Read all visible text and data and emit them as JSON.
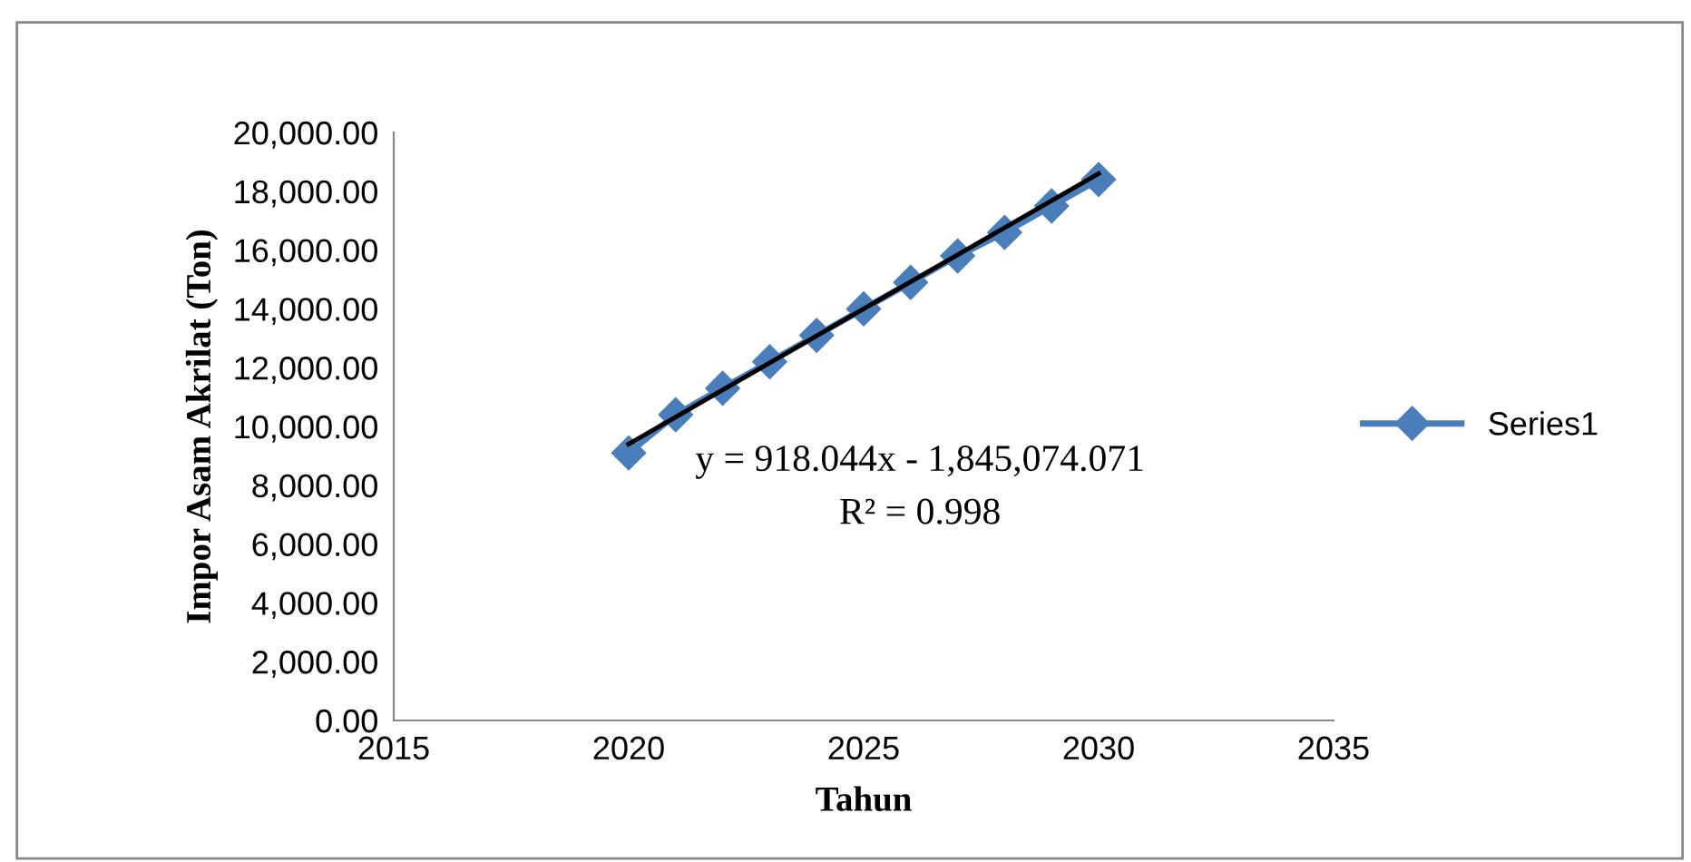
{
  "chart_data": {
    "type": "line",
    "xlabel": "Tahun",
    "ylabel": "Impor Asam Akrilat (Ton)",
    "series": [
      {
        "name": "Series1",
        "color": "#4a7ebb",
        "marker": "diamond",
        "x": [
          2020,
          2021,
          2022,
          2023,
          2024,
          2025,
          2026,
          2027,
          2028,
          2029,
          2030
        ],
        "values": [
          9100,
          10400,
          11300,
          12200,
          13100,
          14000,
          14900,
          15800,
          16600,
          17500,
          18400
        ]
      },
      {
        "color": "#000000",
        "marker": "none",
        "x": [
          2020,
          2030
        ],
        "values": [
          9400,
          18600
        ]
      }
    ],
    "annotations": [
      "y = 918.044x - 1,845,074.071",
      "R² = 0.998"
    ],
    "xlim": [
      2015,
      2035
    ],
    "xticks": [
      2015,
      2020,
      2025,
      2030,
      2035
    ],
    "ylim": [
      0,
      20000
    ],
    "yticks": [
      {
        "value": 0,
        "label": "0.00"
      },
      {
        "value": 2000,
        "label": "2,000.00"
      },
      {
        "value": 4000,
        "label": "4,000.00"
      },
      {
        "value": 6000,
        "label": "6,000.00"
      },
      {
        "value": 8000,
        "label": "8,000.00"
      },
      {
        "value": 10000,
        "label": "10,000.00"
      },
      {
        "value": 12000,
        "label": "12,000.00"
      },
      {
        "value": 14000,
        "label": "14,000.00"
      },
      {
        "value": 16000,
        "label": "16,000.00"
      },
      {
        "value": 18000,
        "label": "18,000.00"
      },
      {
        "value": 20000,
        "label": "20,000.00"
      }
    ],
    "grid": false,
    "legend": "right"
  }
}
